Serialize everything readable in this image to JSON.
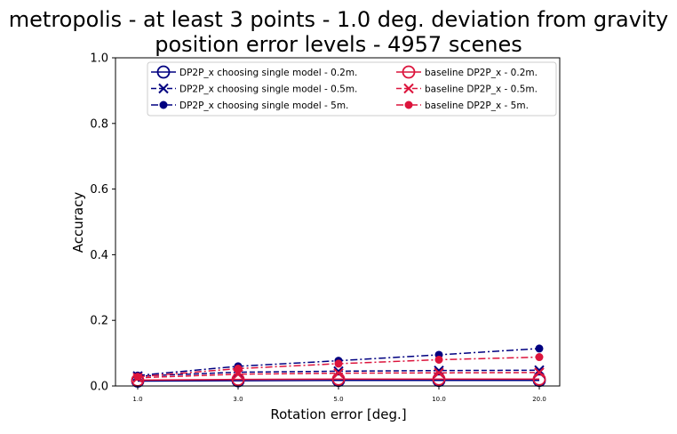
{
  "chart_data": {
    "type": "line",
    "title_line1": "metropolis - at least 3 points - 1.0 deg. deviation from gravity",
    "title_line2": "position error levels - 4957 scenes",
    "xlabel": "Rotation error [deg.]",
    "ylabel": "Accuracy",
    "categories": [
      "1.0",
      "3.0",
      "5.0",
      "10.0",
      "20.0"
    ],
    "ylim": [
      0,
      1
    ],
    "yticks": [
      "0.0",
      "0.2",
      "0.4",
      "0.6",
      "0.8",
      "1.0"
    ],
    "grid": false,
    "legend_position": "top-center",
    "series": [
      {
        "name": "DP2P_x choosing single model - 0.2m.",
        "color": "#000080",
        "linestyle": "solid",
        "marker": "open-circle",
        "values": [
          0.015,
          0.016,
          0.017,
          0.017,
          0.017
        ]
      },
      {
        "name": "DP2P_x choosing single model - 0.5m.",
        "color": "#000080",
        "linestyle": "dashed",
        "marker": "x",
        "values": [
          0.03,
          0.042,
          0.045,
          0.047,
          0.048
        ]
      },
      {
        "name": "DP2P_x choosing single model - 5m.",
        "color": "#000080",
        "linestyle": "dashdot",
        "marker": "filled-circle",
        "values": [
          0.032,
          0.06,
          0.077,
          0.095,
          0.114
        ]
      },
      {
        "name": "baseline DP2P_x - 0.2m.",
        "color": "#dc143c",
        "linestyle": "solid",
        "marker": "open-circle",
        "values": [
          0.018,
          0.02,
          0.021,
          0.021,
          0.021
        ]
      },
      {
        "name": "baseline DP2P_x - 0.5m.",
        "color": "#dc143c",
        "linestyle": "dashed",
        "marker": "x",
        "values": [
          0.025,
          0.036,
          0.039,
          0.04,
          0.041
        ]
      },
      {
        "name": "baseline DP2P_x - 5m.",
        "color": "#dc143c",
        "linestyle": "dashdot",
        "marker": "filled-circle",
        "values": [
          0.028,
          0.053,
          0.068,
          0.08,
          0.088
        ]
      }
    ]
  }
}
